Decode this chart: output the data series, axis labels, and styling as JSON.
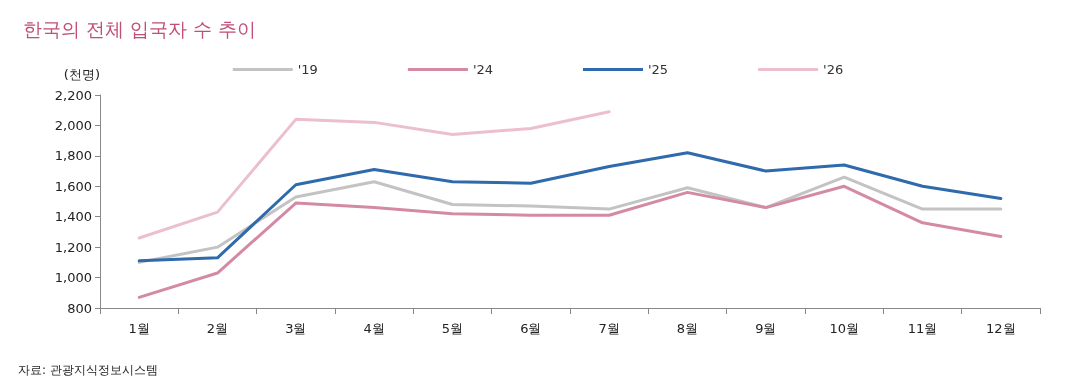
{
  "chart_data": {
    "type": "line",
    "title": "한국의 전체 입국자 수 추이",
    "ylabel": "(천명)",
    "annotations": [
      "자료: 관광지식정보시스템"
    ],
    "categories": [
      "1월",
      "2월",
      "3월",
      "4월",
      "5월",
      "6월",
      "7월",
      "8월",
      "9월",
      "10월",
      "11월",
      "12월"
    ],
    "series": [
      {
        "name": "'19",
        "color": "#c3c3c3",
        "values": [
          1100,
          1200,
          1530,
          1630,
          1480,
          1470,
          1450,
          1590,
          1460,
          1660,
          1450,
          1450
        ]
      },
      {
        "name": "'24",
        "color": "#d48aa5",
        "values": [
          870,
          1030,
          1490,
          1460,
          1420,
          1410,
          1410,
          1560,
          1460,
          1600,
          1360,
          1270
        ]
      },
      {
        "name": "'25",
        "color": "#2e6aac",
        "values": [
          1110,
          1130,
          1610,
          1710,
          1630,
          1620,
          1730,
          1820,
          1700,
          1740,
          1600,
          1520
        ]
      },
      {
        "name": "'26",
        "color": "#ecbfcf",
        "values": [
          1260,
          1430,
          2040,
          2020,
          1940,
          1980,
          2090,
          null,
          null,
          null,
          null,
          null
        ]
      }
    ],
    "ylim": [
      800,
      2200
    ],
    "yticks": [
      800,
      {
        "value": 1000,
        "label": "1,000"
      },
      {
        "value": 1200,
        "label": "1,200"
      },
      {
        "value": 1400,
        "label": "1,400"
      },
      {
        "value": 1600,
        "label": "1,600"
      },
      {
        "value": 1800,
        "label": "1,800"
      },
      {
        "value": 2000,
        "label": "2,000"
      },
      {
        "value": 2200,
        "label": "2,200"
      }
    ],
    "grid": false,
    "legend": "top",
    "marker": "none",
    "line_style": "solid"
  }
}
